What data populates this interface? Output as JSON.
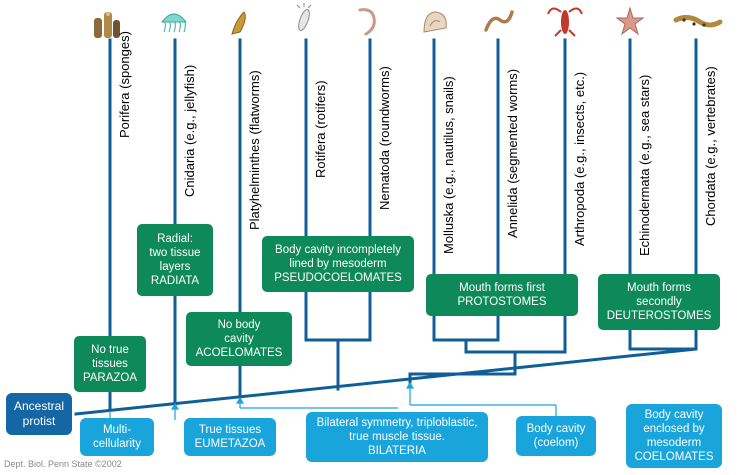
{
  "phyla": [
    {
      "label": "Porifera (sponges)",
      "icon": "sponge-icon"
    },
    {
      "label": "Cnidaria (e.g., jellyfish)",
      "icon": "jellyfish-icon"
    },
    {
      "label": "Platyhelminthes (flatworms)",
      "icon": "flatworm-icon"
    },
    {
      "label": "Rotifera (rotifers)",
      "icon": "rotifer-icon"
    },
    {
      "label": "Nematoda (roundworms)",
      "icon": "roundworm-icon"
    },
    {
      "label": "Molluska (e.g., nautilus, snails)",
      "icon": "snail-icon"
    },
    {
      "label": "Annelida (segmented worms)",
      "icon": "segmented-worm-icon"
    },
    {
      "label": "Arthropoda (e.g., insects, etc.)",
      "icon": "lobster-icon"
    },
    {
      "label": "Echinodermata (e.g., sea stars)",
      "icon": "sea-star-icon"
    },
    {
      "label": "Chordata (e.g., vertebrates)",
      "icon": "lizard-icon"
    }
  ],
  "groups": {
    "parazoa": {
      "l1": "No true",
      "l2": "tissues",
      "l3": "PARAZOA"
    },
    "radiata": {
      "l1": "Radial:",
      "l2": "two tissue",
      "l3": "layers",
      "l4": "RADIATA"
    },
    "acoelomates": {
      "l1": "No body",
      "l2": "cavity",
      "l3": "ACOELOMATES"
    },
    "pseudocoelomates": {
      "l1": "Body cavity incompletely",
      "l2": "lined by mesoderm",
      "l3": "PSEUDOCOELOMATES"
    },
    "protostomes": {
      "l1": "Mouth forms first",
      "l2": "PROTOSTOMES"
    },
    "deuterostomes": {
      "l1": "Mouth forms",
      "l2": "secondly",
      "l3": "DEUTEROSTOMES"
    }
  },
  "root": {
    "l1": "Ancestral",
    "l2": "protist"
  },
  "innovations": {
    "multicellularity": {
      "l1": "Multi-",
      "l2": "cellularity"
    },
    "eumetazoa": {
      "l1": "True tissues",
      "l2": "EUMETAZOA"
    },
    "bilateria": {
      "l1": "Bilateral symmetry, triploblastic,",
      "l2": "true muscle tissue.",
      "l3": "BILATERIA"
    },
    "coelom": {
      "l1": "Body cavity",
      "l2": "(coelom)"
    },
    "coelomates": {
      "l1": "Body cavity",
      "l2": "enclosed by",
      "l3": "mesoderm",
      "l4": "COELOMATES"
    }
  },
  "credit": "Dept. Biol. Penn State ©2002",
  "colors": {
    "tree": "#0f5f96",
    "group": "#0e8a5a",
    "innovation": "#1aa4dc",
    "root": "#1466a4"
  }
}
